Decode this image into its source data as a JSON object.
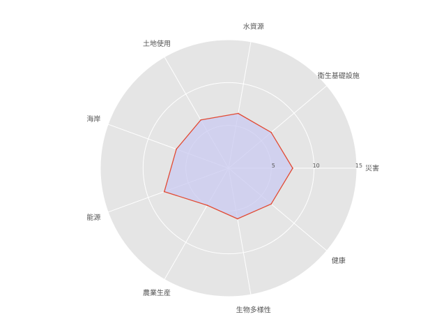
{
  "chart_data": {
    "type": "radar",
    "categories": [
      "災害",
      "衛生基礎設施",
      "水資源",
      "土地使用",
      "海岸",
      "能源",
      "農業生産",
      "生物多様性",
      "健康"
    ],
    "values": [
      7.5,
      6.5,
      6.5,
      6.5,
      6.5,
      8,
      5,
      6,
      6.5
    ],
    "rlim": [
      0,
      15
    ],
    "rticks": [
      5,
      10,
      15
    ],
    "grid": true,
    "colors": {
      "line": "#e24a33",
      "fill": "#c9c9f0",
      "background": "#e5e5e5",
      "grid": "#ffffff"
    }
  }
}
